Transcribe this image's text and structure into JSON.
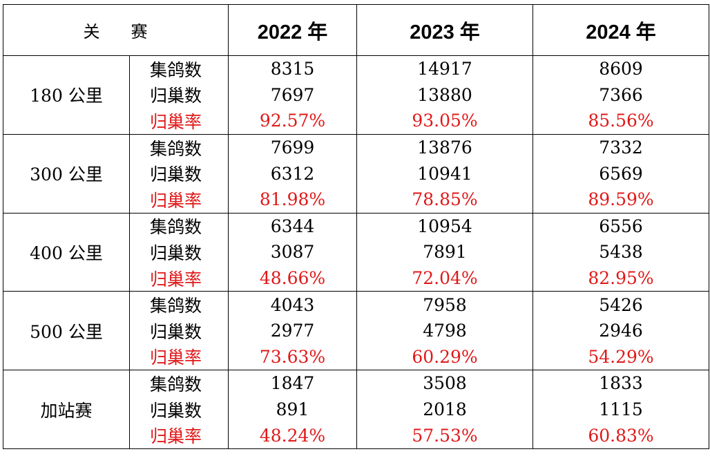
{
  "header": {
    "label_part1": "关",
    "label_part2": "赛",
    "years": [
      "2022 年",
      "2023 年",
      "2024 年"
    ]
  },
  "colors": {
    "rate_text": "#e01818",
    "border": "#000000"
  },
  "groups": [
    {
      "category": "180 公里",
      "rows": [
        {
          "metric": "集鸽数",
          "values": [
            "8315",
            "14917",
            "8609"
          ]
        },
        {
          "metric": "归巢数",
          "values": [
            "7697",
            "13880",
            "7366"
          ]
        },
        {
          "metric": "归巢率",
          "values": [
            "92.57%",
            "93.05%",
            "85.56%"
          ]
        }
      ]
    },
    {
      "category": "300 公里",
      "rows": [
        {
          "metric": "集鸽数",
          "values": [
            "7699",
            "13876",
            "7332"
          ]
        },
        {
          "metric": "归巢数",
          "values": [
            "6312",
            "10941",
            "6569"
          ]
        },
        {
          "metric": "归巢率",
          "values": [
            "81.98%",
            "78.85%",
            "89.59%"
          ]
        }
      ]
    },
    {
      "category": "400 公里",
      "rows": [
        {
          "metric": "集鸽数",
          "values": [
            "6344",
            "10954",
            "6556"
          ]
        },
        {
          "metric": "归巢数",
          "values": [
            "3087",
            "7891",
            "5438"
          ]
        },
        {
          "metric": "归巢率",
          "values": [
            "48.66%",
            "72.04%",
            "82.95%"
          ]
        }
      ]
    },
    {
      "category": "500 公里",
      "rows": [
        {
          "metric": "集鸽数",
          "values": [
            "4043",
            "7958",
            "5426"
          ]
        },
        {
          "metric": "归巢数",
          "values": [
            "2977",
            "4798",
            "2946"
          ]
        },
        {
          "metric": "归巢率",
          "values": [
            "73.63%",
            "60.29%",
            "54.29%"
          ]
        }
      ]
    },
    {
      "category": "加站赛",
      "rows": [
        {
          "metric": "集鸽数",
          "values": [
            "1847",
            "3508",
            "1833"
          ]
        },
        {
          "metric": "归巢数",
          "values": [
            "891",
            "2018",
            "1115"
          ]
        },
        {
          "metric": "归巢率",
          "values": [
            "48.24%",
            "57.53%",
            "60.83%"
          ]
        }
      ]
    }
  ]
}
